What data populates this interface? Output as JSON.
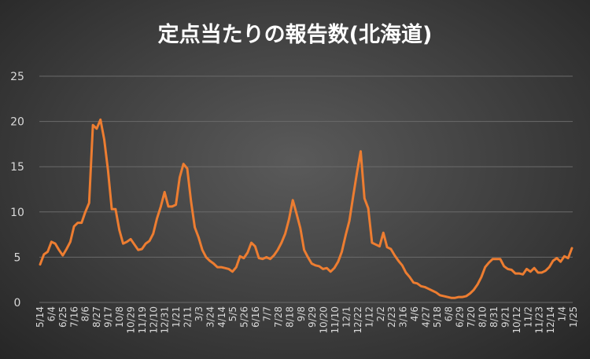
{
  "chart_data": {
    "type": "line",
    "title": "定点当たりの報告数(北海道)",
    "xlabel": "",
    "ylabel": "",
    "ylim": [
      0,
      25
    ],
    "yticks": [
      0,
      5,
      10,
      15,
      20,
      25
    ],
    "grid": true,
    "x_tick_labels": [
      "5/14",
      "6/4",
      "6/25",
      "7/16",
      "8/6",
      "8/27",
      "9/17",
      "10/8",
      "10/29",
      "11/19",
      "12/10",
      "12/31",
      "1/21",
      "2/11",
      "3/3",
      "3/24",
      "4/14",
      "5/5",
      "5/26",
      "6/16",
      "7/7",
      "7/28",
      "8/18",
      "9/8",
      "9/29",
      "10/20",
      "11/10",
      "12/1",
      "12/22",
      "1/12",
      "2/2",
      "2/23",
      "3/16",
      "4/6",
      "4/27",
      "5/18",
      "6/8",
      "6/29",
      "7/20",
      "8/10",
      "8/31",
      "9/21",
      "10/12",
      "11/2",
      "11/23",
      "12/14",
      "1/4",
      "1/25"
    ],
    "series": [
      {
        "name": "",
        "color": "#ed7d31",
        "values": [
          4.2,
          5.3,
          5.6,
          6.7,
          6.5,
          5.8,
          5.2,
          5.9,
          6.7,
          8.4,
          8.8,
          8.8,
          10.0,
          11.0,
          19.6,
          19.2,
          20.2,
          18.0,
          14.6,
          10.3,
          10.3,
          8.0,
          6.5,
          6.7,
          7.0,
          6.4,
          5.8,
          5.9,
          6.5,
          6.8,
          7.6,
          9.3,
          10.6,
          12.2,
          10.6,
          10.6,
          10.8,
          13.8,
          15.3,
          14.8,
          11.2,
          8.3,
          7.2,
          5.8,
          5.0,
          4.6,
          4.3,
          3.9,
          3.9,
          3.8,
          3.7,
          3.4,
          3.9,
          5.1,
          4.9,
          5.5,
          6.6,
          6.2,
          4.9,
          4.8,
          5.0,
          4.8,
          5.2,
          5.8,
          6.6,
          7.6,
          9.2,
          11.3,
          9.8,
          8.2,
          5.8,
          5.0,
          4.3,
          4.1,
          4.0,
          3.7,
          3.8,
          3.4,
          3.8,
          4.5,
          5.6,
          7.4,
          9.0,
          11.7,
          14.3,
          16.7,
          11.5,
          10.4,
          6.6,
          6.4,
          6.2,
          7.7,
          6.1,
          5.9,
          5.2,
          4.6,
          4.1,
          3.3,
          2.8,
          2.2,
          2.1,
          1.8,
          1.7,
          1.5,
          1.3,
          1.1,
          0.8,
          0.7,
          0.6,
          0.5,
          0.5,
          0.6,
          0.6,
          0.7,
          1.0,
          1.4,
          2.0,
          2.8,
          3.9,
          4.4,
          4.8,
          4.8,
          4.8,
          4.0,
          3.7,
          3.6,
          3.2,
          3.2,
          3.1,
          3.7,
          3.4,
          3.8,
          3.3,
          3.3,
          3.5,
          3.9,
          4.6,
          4.9,
          4.5,
          5.1,
          4.9,
          6.0
        ]
      }
    ]
  }
}
